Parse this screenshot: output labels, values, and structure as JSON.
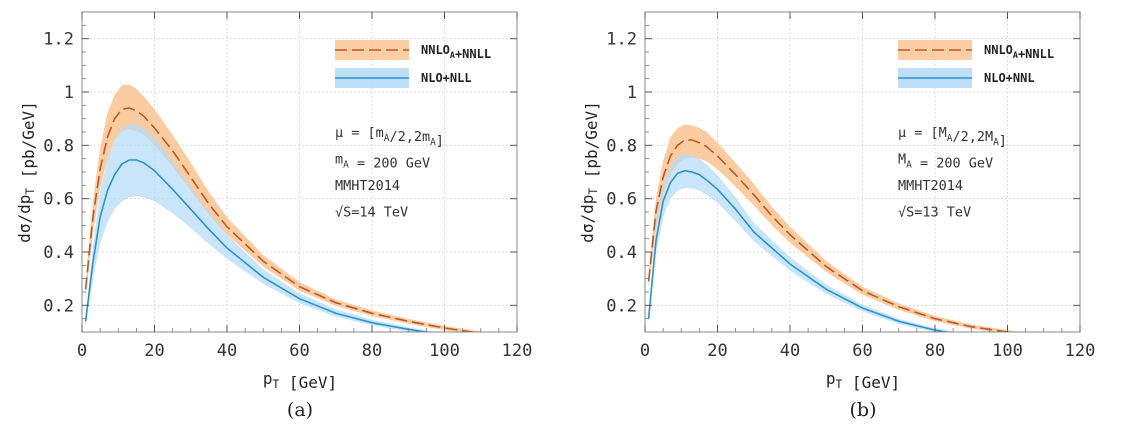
{
  "chart_data": [
    {
      "panel_id": "a",
      "type": "line",
      "caption": "(a)",
      "xlabel": "p_T [GeV]",
      "ylabel": "dσ/dp_T [pb/GeV]",
      "xlim": [
        0,
        120
      ],
      "ylim": [
        0.1,
        1.3
      ],
      "xticks": [
        0,
        20,
        40,
        60,
        80,
        100,
        120
      ],
      "yticks": [
        0.2,
        0.4,
        0.6,
        0.8,
        1,
        1.2
      ],
      "legend_position": "top-right",
      "annotations": [
        "μ = [m_A/2,2m_A]",
        "m_A = 200 GeV",
        "MMHT2014",
        "√S=14 TeV"
      ],
      "series": [
        {
          "name": "NNLO_A+NNLL",
          "style": "dashed",
          "color": "#b85a2a",
          "band_color": "#fbc99a",
          "x": [
            1,
            3,
            5,
            7,
            9,
            11,
            13,
            15,
            17,
            20,
            25,
            30,
            35,
            40,
            50,
            60,
            70,
            80,
            90,
            100,
            110
          ],
          "y": [
            0.26,
            0.53,
            0.71,
            0.83,
            0.9,
            0.935,
            0.94,
            0.93,
            0.91,
            0.865,
            0.78,
            0.68,
            0.58,
            0.495,
            0.365,
            0.27,
            0.21,
            0.17,
            0.14,
            0.115,
            0.095
          ],
          "lower": [
            0.23,
            0.47,
            0.64,
            0.75,
            0.82,
            0.85,
            0.86,
            0.855,
            0.84,
            0.8,
            0.72,
            0.63,
            0.54,
            0.465,
            0.345,
            0.255,
            0.198,
            0.16,
            0.131,
            0.107,
            0.088
          ],
          "upper": [
            0.29,
            0.59,
            0.79,
            0.92,
            0.99,
            1.025,
            1.028,
            1.012,
            0.985,
            0.935,
            0.84,
            0.735,
            0.625,
            0.53,
            0.388,
            0.287,
            0.222,
            0.181,
            0.149,
            0.123,
            0.102
          ]
        },
        {
          "name": "NLO+NLL",
          "style": "solid",
          "color": "#2a93d5",
          "band_color": "#b7dcf7",
          "x": [
            1,
            3,
            5,
            7,
            9,
            11,
            13,
            15,
            17,
            20,
            25,
            30,
            35,
            40,
            50,
            60,
            70,
            80,
            90,
            97
          ],
          "y": [
            0.14,
            0.36,
            0.53,
            0.63,
            0.69,
            0.73,
            0.745,
            0.745,
            0.735,
            0.705,
            0.635,
            0.56,
            0.485,
            0.415,
            0.305,
            0.225,
            0.17,
            0.135,
            0.11,
            0.095
          ],
          "lower": [
            0.12,
            0.3,
            0.43,
            0.51,
            0.56,
            0.59,
            0.605,
            0.61,
            0.605,
            0.59,
            0.545,
            0.49,
            0.43,
            0.375,
            0.28,
            0.208,
            0.157,
            0.125,
            0.101,
            0.088
          ],
          "upper": [
            0.16,
            0.42,
            0.63,
            0.75,
            0.82,
            0.862,
            0.88,
            0.878,
            0.865,
            0.83,
            0.74,
            0.64,
            0.55,
            0.465,
            0.335,
            0.245,
            0.185,
            0.146,
            0.118,
            0.102
          ]
        }
      ]
    },
    {
      "panel_id": "b",
      "type": "line",
      "caption": "(b)",
      "xlabel": "p_T [GeV]",
      "ylabel": "dσ/dp_T [pb/GeV]",
      "xlim": [
        0,
        120
      ],
      "ylim": [
        0.1,
        1.3
      ],
      "xticks": [
        0,
        20,
        40,
        60,
        80,
        100,
        120
      ],
      "yticks": [
        0.2,
        0.4,
        0.6,
        0.8,
        1,
        1.2
      ],
      "legend_position": "top-right",
      "annotations": [
        "μ = [M_A/2,2M_A]",
        "M_A = 200 GeV",
        "MMHT2014",
        "√S=13 TeV"
      ],
      "series": [
        {
          "name": "NNLO_A+NNLL",
          "style": "dashed",
          "color": "#b85a2a",
          "band_color": "#fbc99a",
          "x": [
            1,
            3,
            5,
            7,
            9,
            11,
            13,
            15,
            17,
            20,
            25,
            30,
            35,
            40,
            50,
            60,
            70,
            80,
            90,
            100,
            105
          ],
          "y": [
            0.29,
            0.55,
            0.68,
            0.76,
            0.8,
            0.82,
            0.82,
            0.81,
            0.795,
            0.76,
            0.69,
            0.615,
            0.535,
            0.465,
            0.345,
            0.255,
            0.195,
            0.15,
            0.12,
            0.1,
            0.092
          ],
          "lower": [
            0.26,
            0.49,
            0.62,
            0.69,
            0.73,
            0.75,
            0.755,
            0.75,
            0.74,
            0.71,
            0.645,
            0.575,
            0.5,
            0.435,
            0.325,
            0.24,
            0.183,
            0.14,
            0.112,
            0.093,
            0.085
          ],
          "upper": [
            0.32,
            0.6,
            0.74,
            0.83,
            0.865,
            0.878,
            0.875,
            0.865,
            0.85,
            0.81,
            0.735,
            0.655,
            0.57,
            0.495,
            0.366,
            0.27,
            0.207,
            0.16,
            0.128,
            0.107,
            0.098
          ]
        },
        {
          "name": "NLO+NNL",
          "style": "solid",
          "color": "#2a93d5",
          "band_color": "#b7dcf7",
          "x": [
            1,
            3,
            5,
            7,
            9,
            11,
            13,
            15,
            17,
            20,
            25,
            30,
            35,
            40,
            50,
            60,
            70,
            80,
            85
          ],
          "y": [
            0.15,
            0.44,
            0.59,
            0.66,
            0.695,
            0.705,
            0.7,
            0.69,
            0.67,
            0.635,
            0.56,
            0.475,
            0.415,
            0.355,
            0.26,
            0.19,
            0.14,
            0.107,
            0.095
          ],
          "lower": [
            0.13,
            0.39,
            0.53,
            0.6,
            0.63,
            0.64,
            0.638,
            0.63,
            0.615,
            0.585,
            0.515,
            0.44,
            0.385,
            0.33,
            0.242,
            0.177,
            0.13,
            0.099,
            0.088
          ],
          "upper": [
            0.17,
            0.49,
            0.65,
            0.72,
            0.76,
            0.768,
            0.762,
            0.75,
            0.728,
            0.688,
            0.605,
            0.51,
            0.445,
            0.38,
            0.278,
            0.203,
            0.15,
            0.115,
            0.102
          ]
        }
      ]
    }
  ]
}
